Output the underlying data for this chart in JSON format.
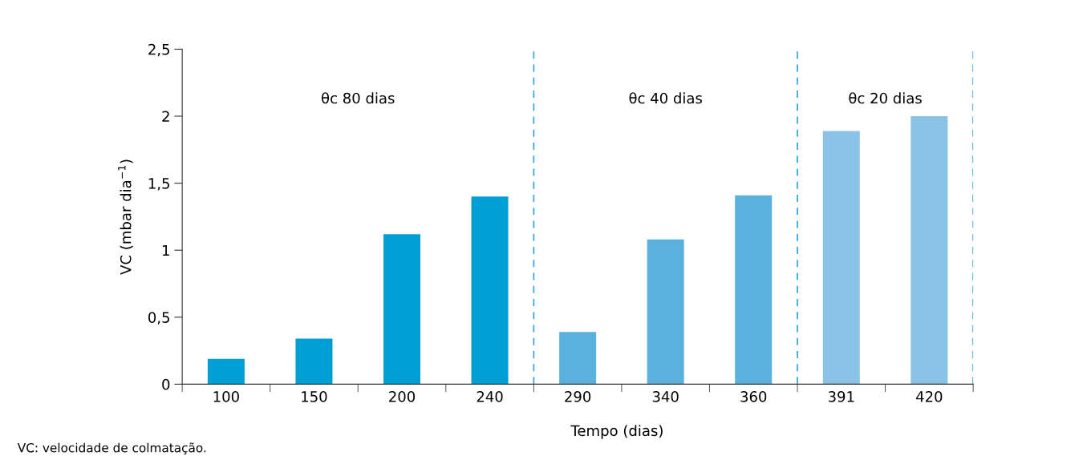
{
  "chart_data": {
    "type": "bar",
    "xlabel": "Tempo (dias)",
    "ylabel": "VC (mbar dia$^{−1}$)",
    "categories": [
      "100",
      "150",
      "200",
      "240",
      "290",
      "340",
      "360",
      "391",
      "420"
    ],
    "values": [
      0.19,
      0.34,
      1.12,
      1.4,
      0.39,
      1.08,
      1.41,
      1.89,
      2.0
    ],
    "colors": [
      "#009fd3",
      "#009fd3",
      "#009fd3",
      "#009fd3",
      "#5bb1dd",
      "#5bb1dd",
      "#5bb1dd",
      "#8bc3e6",
      "#8bc3e6"
    ],
    "ylim": [
      0,
      2.5
    ],
    "yticks": [
      0,
      {
        "value": 0.5,
        "label": "0,5"
      },
      1,
      {
        "value": 1.5,
        "label": "1,5"
      },
      2,
      {
        "value": 2.5,
        "label": "2,5"
      }
    ],
    "annotations": [
      "θc 80 dias",
      "θc 40 dias",
      "θc 20 dias",
      "VC: velocidade de colmatação."
    ],
    "grid": false,
    "legend": false
  }
}
